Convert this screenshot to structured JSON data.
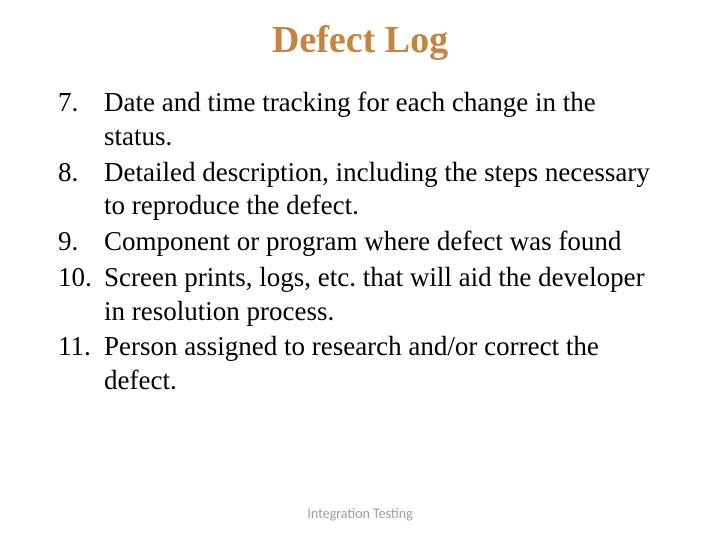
{
  "slide": {
    "title": "Defect Log",
    "title_color": "#c5843f",
    "title_fontsize": 38,
    "title_fontweight": "bold",
    "background_color": "#ffffff",
    "body_fontsize": 27,
    "body_color": "#000000",
    "list": {
      "start_number": 7,
      "items": [
        {
          "num": "7.",
          "text": "Date and time tracking for each change in the status."
        },
        {
          "num": "8.",
          "text": "Detailed description, including the steps necessary to reproduce the defect."
        },
        {
          "num": "9.",
          "text": "Component or program where defect was found"
        },
        {
          "num": "10.",
          "text": "Screen prints, logs, etc. that will aid the developer in resolution process."
        },
        {
          "num": "11.",
          "text": "Person assigned to research and/or correct the defect."
        }
      ]
    },
    "footer": "Integration Testing",
    "footer_color": "#9e9e9e",
    "footer_fontsize": 14
  }
}
